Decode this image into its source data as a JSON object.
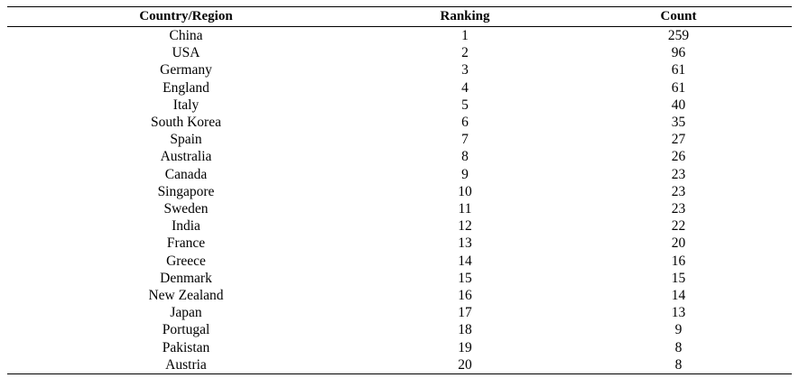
{
  "table": {
    "headers": [
      "Country/Region",
      "Ranking",
      "Count"
    ],
    "rows": [
      [
        "China",
        "1",
        "259"
      ],
      [
        "USA",
        "2",
        "96"
      ],
      [
        "Germany",
        "3",
        "61"
      ],
      [
        "England",
        "4",
        "61"
      ],
      [
        "Italy",
        "5",
        "40"
      ],
      [
        "South Korea",
        "6",
        "35"
      ],
      [
        "Spain",
        "7",
        "27"
      ],
      [
        "Australia",
        "8",
        "26"
      ],
      [
        "Canada",
        "9",
        "23"
      ],
      [
        "Singapore",
        "10",
        "23"
      ],
      [
        "Sweden",
        "11",
        "23"
      ],
      [
        "India",
        "12",
        "22"
      ],
      [
        "France",
        "13",
        "20"
      ],
      [
        "Greece",
        "14",
        "16"
      ],
      [
        "Denmark",
        "15",
        "15"
      ],
      [
        "New Zealand",
        "16",
        "14"
      ],
      [
        "Japan",
        "17",
        "13"
      ],
      [
        "Portugal",
        "18",
        "9"
      ],
      [
        "Pakistan",
        "19",
        "8"
      ],
      [
        "Austria",
        "20",
        "8"
      ]
    ]
  }
}
